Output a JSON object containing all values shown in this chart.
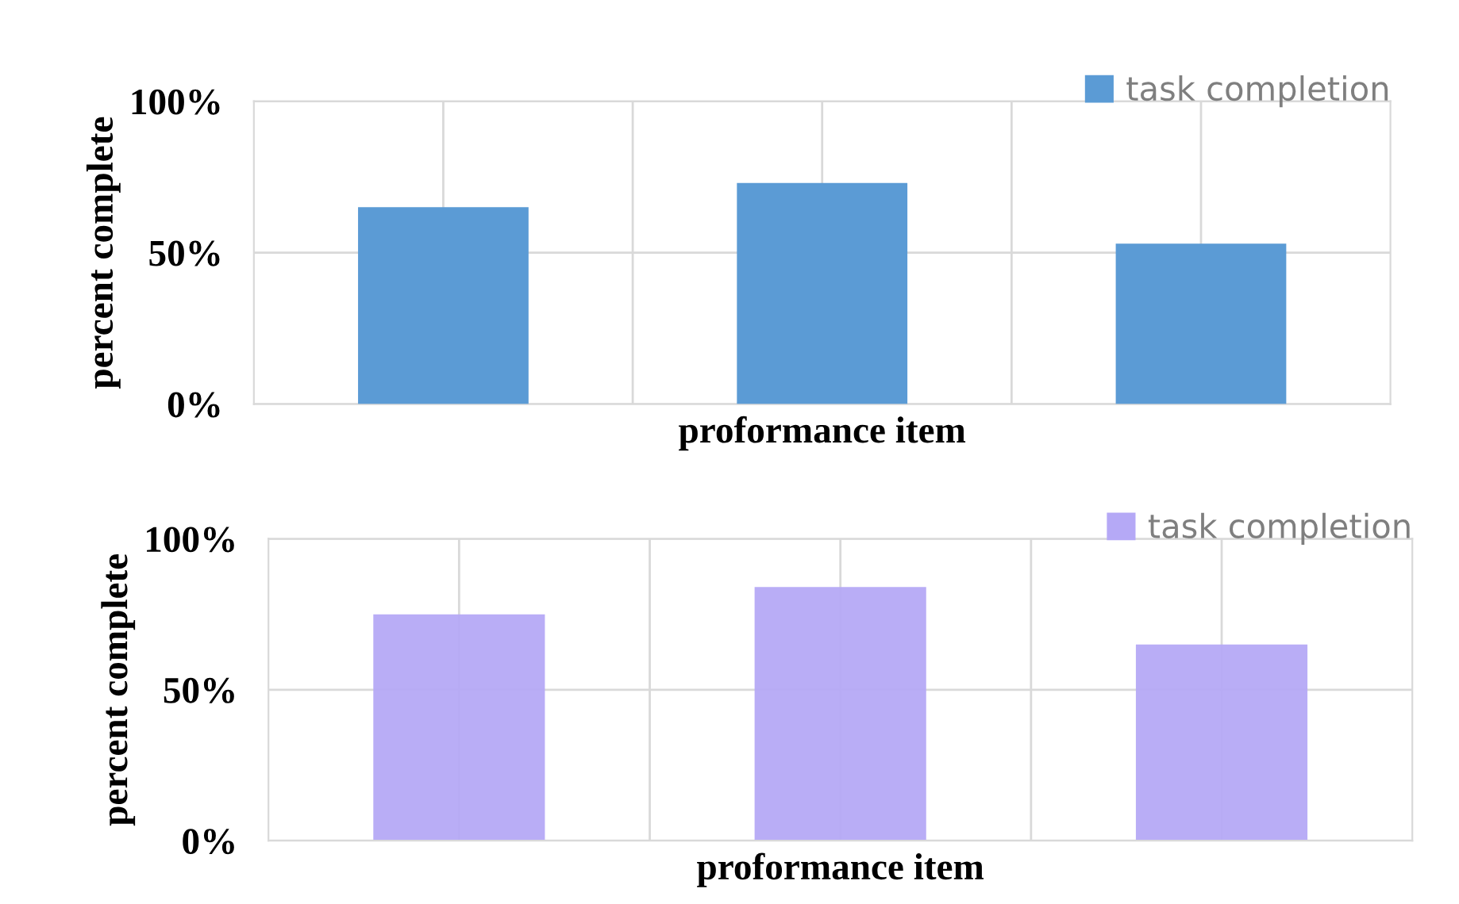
{
  "chart_data": [
    {
      "type": "bar",
      "xlabel": "proformance item",
      "ylabel": "percent complete",
      "categories": [
        null,
        null,
        null
      ],
      "series": [
        {
          "name": "task completion",
          "color": "#5b9bd5",
          "values": [
            65,
            73,
            53
          ]
        }
      ],
      "ylim": [
        0,
        100
      ],
      "yticks": [
        {
          "value": 0,
          "label": "0%"
        },
        {
          "value": 50,
          "label": "50%"
        },
        {
          "value": 100,
          "label": "100%"
        }
      ],
      "grid": true,
      "legend": "top right"
    },
    {
      "type": "bar",
      "xlabel": "proformance item",
      "ylabel": "percent complete",
      "categories": [
        null,
        null,
        null
      ],
      "series": [
        {
          "name": "task completion",
          "color": "#b5a9f6",
          "values": [
            75,
            84,
            65
          ]
        }
      ],
      "ylim": [
        0,
        100
      ],
      "yticks": [
        {
          "value": 0,
          "label": "0%"
        },
        {
          "value": 50,
          "label": "50%"
        },
        {
          "value": 100,
          "label": "100%"
        }
      ],
      "grid": true,
      "legend": "top right"
    }
  ]
}
